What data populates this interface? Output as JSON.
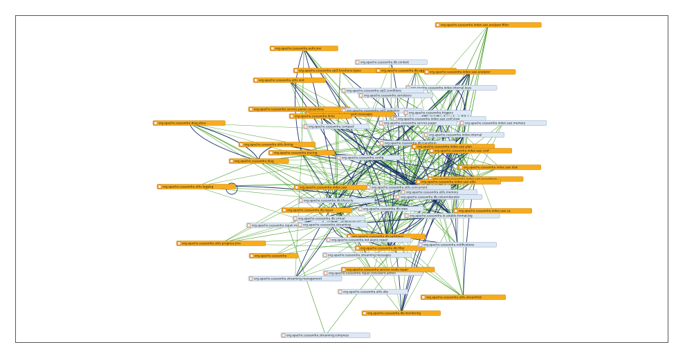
{
  "diagram": {
    "nodes": [
      {
        "id": "n0",
        "label": "org.apache.cassandra.index.sasi.analyzer.filter",
        "color": "orange"
      },
      {
        "id": "n1",
        "label": "org.apache.cassandra.auth.jmx",
        "color": "orange"
      },
      {
        "id": "n2",
        "label": "org.apache.cassandra.db.context",
        "color": "blue"
      },
      {
        "id": "n3",
        "label": "org.apache.cassandra.cql3.functions.types",
        "color": "orange"
      },
      {
        "id": "n4",
        "label": "org.apache.cassandra.db.aggregation",
        "color": "orange"
      },
      {
        "id": "n5",
        "label": "org.apache.cassandra.index.sasi.analyzer",
        "color": "orange"
      },
      {
        "id": "n6",
        "label": "org.apache.cassandra.utils.vint",
        "color": "orange"
      },
      {
        "id": "n7",
        "label": "org.apache.cassandra.index.internal.keys",
        "color": "blue"
      },
      {
        "id": "n8",
        "label": "org.apache.cassandra.cql3.conditions",
        "color": "blue"
      },
      {
        "id": "n9",
        "label": "org.apache.cassandra.serializers",
        "color": "blue"
      },
      {
        "id": "n10",
        "label": "org.apache.cassandra.service.paxos.cassandras",
        "color": "orange"
      },
      {
        "id": "n11",
        "label": "org.apache.cassandra.cql3.selection",
        "color": "blue"
      },
      {
        "id": "n12",
        "label": "org.apache.cassandra.transport.messages",
        "color": "orange"
      },
      {
        "id": "n13",
        "label": "org.apache.cassandra.triggers",
        "color": "blue"
      },
      {
        "id": "n14",
        "label": "org.apache.cassandra.hints",
        "color": "orange"
      },
      {
        "id": "n15",
        "label": "org.apache.cassandra.index.sasi.conf.view",
        "color": "blue"
      },
      {
        "id": "n16",
        "label": "org.apache.cassandra.service.pager",
        "color": "blue"
      },
      {
        "id": "n17",
        "label": "org.apache.cassandra.index.sasi.memory",
        "color": "blue"
      },
      {
        "id": "n18",
        "label": "org.apache.cassandra.diag.store",
        "color": "orange"
      },
      {
        "id": "n19",
        "label": "org.apache.cassandra.compact",
        "color": "blue"
      },
      {
        "id": "n20",
        "label": "org.apache.cassandra.index.internal",
        "color": "blue"
      },
      {
        "id": "n21",
        "label": "org.apache.cassandra.utils.binlog",
        "color": "orange"
      },
      {
        "id": "n22",
        "label": "org.apache.cassandra.db.transform",
        "color": "blue"
      },
      {
        "id": "n23",
        "label": "org.apache.cassandra.index.sasi.plan",
        "color": "orange"
      },
      {
        "id": "n24",
        "label": "org.apache.cassandra.tracing",
        "color": "orange"
      },
      {
        "id": "n25",
        "label": "org.apache.cassandra.index.sasi.conf",
        "color": "orange"
      },
      {
        "id": "n26",
        "label": "org.apache.cassandra.diag",
        "color": "orange"
      },
      {
        "id": "n27",
        "label": "org.apache.cassandra.config",
        "color": "blue"
      },
      {
        "id": "n28",
        "label": "org.apache.cassandra.index.sasi.disk",
        "color": "orange"
      },
      {
        "id": "n29",
        "label": "org.apache.cassandra.index.sasi.exceptions",
        "color": "orange"
      },
      {
        "id": "n30",
        "label": "org.apache.cassandra.index.sasi.utils",
        "color": "orange"
      },
      {
        "id": "n31",
        "label": "org.apache.cassandra.utils.logging",
        "color": "orange"
      },
      {
        "id": "n32",
        "label": "org.apache.cassandra.utils.concurrent",
        "color": "blue"
      },
      {
        "id": "n33",
        "label": "org.apache.cassandra.utils.memory",
        "color": "blue"
      },
      {
        "id": "n34",
        "label": "org.apache.cassandra.index.sasi",
        "color": "orange"
      },
      {
        "id": "n35",
        "label": "org.apache.cassandra.db.columniterator",
        "color": "blue"
      },
      {
        "id": "n36",
        "label": "org.apache.cassandra.db.lifecycle",
        "color": "blue"
      },
      {
        "id": "n37",
        "label": "org.apache.cassandra.index.sasi.sa",
        "color": "orange"
      },
      {
        "id": "n38",
        "label": "org.apache.cassandra.db.rows",
        "color": "blue"
      },
      {
        "id": "n39",
        "label": "org.apache.cassandra.db.repair",
        "color": "orange"
      },
      {
        "id": "n40",
        "label": "org.apache.cassandra.io.sstable.format.big",
        "color": "blue"
      },
      {
        "id": "n41",
        "label": "org.apache.cassandra.db.virtual",
        "color": "blue"
      },
      {
        "id": "n42",
        "label": "org.apache.cassandra.repair.messages",
        "color": "blue"
      },
      {
        "id": "n43",
        "label": "org.apache.cassandra.utils.progress.jmx",
        "color": "orange"
      },
      {
        "id": "n44",
        "label": "org.apache.cassandra.streaming",
        "color": "blue"
      },
      {
        "id": "n45",
        "label": "org.apache.cassandra.db.partitions",
        "color": "orange"
      },
      {
        "id": "n46",
        "label": "org.apache.cassandra.net.async.repair",
        "color": "blue"
      },
      {
        "id": "n47",
        "label": "org.apache.cassandra.db.filter",
        "color": "orange"
      },
      {
        "id": "n48",
        "label": "org.apache.cassandra.notifications",
        "color": "blue"
      },
      {
        "id": "n49",
        "label": "org.apache.cassandra",
        "color": "orange"
      },
      {
        "id": "n50",
        "label": "org.apache.cassandra.streaming.messages",
        "color": "blue"
      },
      {
        "id": "n51",
        "label": "org.apache.cassandra.repair.consistent.admin",
        "color": "blue"
      },
      {
        "id": "n52",
        "label": "org.apache.cassandra.service.reads.repair",
        "color": "orange"
      },
      {
        "id": "n53",
        "label": "org.apache.cassandra.streaming.management",
        "color": "blue"
      },
      {
        "id": "n54",
        "label": "org.apache.cassandra.utils.obs",
        "color": "blue"
      },
      {
        "id": "n55",
        "label": "org.apache.cassandra.utils.streamhist",
        "color": "orange"
      },
      {
        "id": "n56",
        "label": "org.apache.cassandra.db.monitoring",
        "color": "orange"
      },
      {
        "id": "n57",
        "label": "org.apache.cassandra.streaming.compress",
        "color": "blue"
      }
    ]
  }
}
